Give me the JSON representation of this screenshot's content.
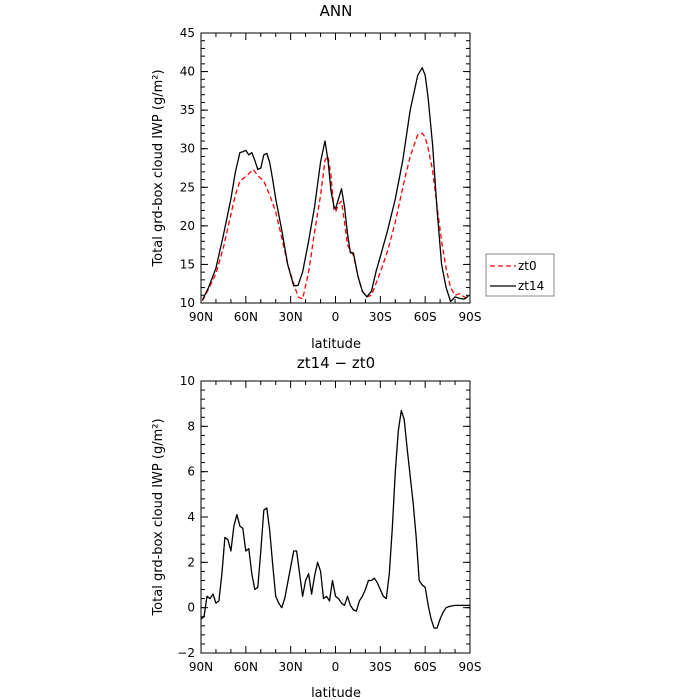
{
  "chart_data": [
    {
      "type": "line",
      "title": "ANN",
      "xlabel": "latitude",
      "ylabel": "Total grd-box cloud IWP (g/m²)",
      "xlim": [
        90,
        -90
      ],
      "ylim": [
        10,
        45
      ],
      "x_ticks": [
        90,
        60,
        30,
        0,
        -30,
        -60,
        -90
      ],
      "x_tick_labels": [
        "90N",
        "60N",
        "30N",
        "0",
        "30S",
        "60S",
        "90S"
      ],
      "y_ticks": [
        10,
        15,
        20,
        25,
        30,
        35,
        40,
        45
      ],
      "y_tick_labels": [
        "10",
        "15",
        "20",
        "25",
        "30",
        "35",
        "40",
        "45"
      ],
      "legend_position": "right",
      "series": [
        {
          "name": "zt0",
          "color": "#ff0000",
          "dash": "dashed",
          "x": [
            89,
            85,
            80,
            75,
            70,
            67,
            64,
            60,
            55,
            52,
            48,
            44,
            40,
            36,
            32,
            28,
            25,
            22,
            18,
            14,
            10,
            7,
            5,
            3,
            1,
            0,
            -2,
            -4,
            -6,
            -8,
            -10,
            -12,
            -15,
            -18,
            -21,
            -24,
            -27,
            -30,
            -35,
            -40,
            -45,
            -50,
            -55,
            -58,
            -60,
            -62,
            -65,
            -68,
            -71,
            -74,
            -77,
            -80,
            -83,
            -86,
            -89
          ],
          "y": [
            10.3,
            11.8,
            13.8,
            17.2,
            21.5,
            24,
            25.8,
            26.4,
            27.3,
            26.5,
            25.8,
            24,
            21.8,
            18.5,
            15,
            12.5,
            10.8,
            10.5,
            14,
            19.2,
            24,
            28.5,
            29,
            26.5,
            22,
            21.8,
            22.8,
            23.2,
            20.5,
            17.5,
            16.8,
            16.2,
            13.5,
            11.5,
            10.8,
            11,
            12.5,
            14,
            16.8,
            20.5,
            25,
            29,
            31.8,
            32,
            31.5,
            30,
            27.2,
            22.5,
            18,
            14.5,
            12,
            11,
            11.2,
            10.8,
            10.6
          ]
        },
        {
          "name": "zt14",
          "color": "#000000",
          "dash": "solid",
          "x": [
            89,
            85,
            80,
            75,
            70,
            67,
            64,
            62,
            60,
            58,
            56,
            54,
            52,
            50,
            48,
            46,
            44,
            42,
            40,
            36,
            32,
            28,
            25,
            22,
            18,
            14,
            10,
            7,
            5,
            3,
            1,
            0,
            -2,
            -4,
            -6,
            -8,
            -10,
            -12,
            -15,
            -18,
            -21,
            -24,
            -27,
            -30,
            -35,
            -40,
            -45,
            -50,
            -55,
            -58,
            -60,
            -62,
            -65,
            -68,
            -71,
            -74,
            -77,
            -80,
            -83,
            -86,
            -89
          ],
          "y": [
            10.4,
            12,
            14.5,
            18.8,
            23.5,
            27,
            29.5,
            29.6,
            29.8,
            29.2,
            29.5,
            28.5,
            27.3,
            27.5,
            29.2,
            29.4,
            28.2,
            26,
            23.5,
            19.5,
            15,
            12.2,
            12.3,
            14,
            18,
            22.5,
            28.3,
            31,
            28.5,
            24.5,
            22.5,
            22.2,
            23.5,
            24.8,
            22.5,
            19,
            16.5,
            16.5,
            13.5,
            11.5,
            10.8,
            11.5,
            14,
            16,
            19.5,
            23.5,
            28.5,
            35,
            39.5,
            40.5,
            39.5,
            36.5,
            30.5,
            22,
            15,
            12,
            10.2,
            10.8,
            10.6,
            10.5,
            10.9
          ]
        }
      ]
    },
    {
      "type": "line",
      "title": "zt14 − zt0",
      "xlabel": "latitude",
      "ylabel": "Total grd-box cloud IWP (g/m²)",
      "xlim": [
        90,
        -90
      ],
      "ylim": [
        -2,
        10
      ],
      "x_ticks": [
        90,
        60,
        30,
        0,
        -30,
        -60,
        -90
      ],
      "x_tick_labels": [
        "90N",
        "60N",
        "30N",
        "0",
        "30S",
        "60S",
        "90S"
      ],
      "y_ticks": [
        -2,
        0,
        2,
        4,
        6,
        8,
        10
      ],
      "y_tick_labels": [
        "−2",
        "0",
        "2",
        "4",
        "6",
        "8",
        "10"
      ],
      "series": [
        {
          "color": "#000000",
          "dash": "solid",
          "x": [
            90,
            88,
            86,
            84,
            82,
            80,
            78,
            76,
            74,
            72,
            70,
            68,
            66,
            64,
            62,
            60,
            58,
            56,
            54,
            52,
            50,
            48,
            46,
            44,
            42,
            40,
            38,
            36,
            34,
            32,
            30,
            28,
            26,
            24,
            22,
            20,
            18,
            16,
            14,
            12,
            10,
            8,
            6,
            4,
            2,
            0,
            -2,
            -4,
            -6,
            -8,
            -10,
            -12,
            -14,
            -16,
            -18,
            -20,
            -22,
            -24,
            -26,
            -28,
            -30,
            -32,
            -34,
            -36,
            -38,
            -40,
            -42,
            -44,
            -46,
            -48,
            -50,
            -52,
            -54,
            -56,
            -58,
            -60,
            -62,
            -64,
            -66,
            -68,
            -70,
            -72,
            -74,
            -76,
            -78,
            -80,
            -82,
            -84,
            -86,
            -88,
            -90
          ],
          "y": [
            -0.5,
            -0.4,
            0.5,
            0.4,
            0.6,
            0.2,
            0.3,
            1.5,
            3.1,
            3,
            2.5,
            3.6,
            4.1,
            3.6,
            3.5,
            2.5,
            2.6,
            1.5,
            0.8,
            0.9,
            2.5,
            4.3,
            4.4,
            3.4,
            1.9,
            0.5,
            0.2,
            0,
            0.4,
            1.1,
            1.8,
            2.5,
            2.5,
            1.5,
            0.5,
            1.2,
            1.5,
            0.6,
            1.4,
            2,
            1.6,
            0.4,
            0.5,
            0.3,
            1.2,
            0.5,
            0.4,
            0.2,
            0.1,
            0.5,
            0.1,
            -0.1,
            -0.15,
            0.3,
            0.5,
            0.8,
            1.2,
            1.2,
            1.3,
            1.1,
            0.8,
            0.5,
            0.4,
            1.5,
            3.5,
            6,
            7.8,
            8.7,
            8.3,
            7,
            5.8,
            4.6,
            3.1,
            1.2,
            1,
            0.9,
            0.1,
            -0.5,
            -0.9,
            -0.9,
            -0.5,
            -0.2,
            0,
            0.05,
            0.08,
            0.1,
            0.1,
            0.1,
            0.1,
            0.1,
            0.1
          ]
        }
      ]
    }
  ]
}
